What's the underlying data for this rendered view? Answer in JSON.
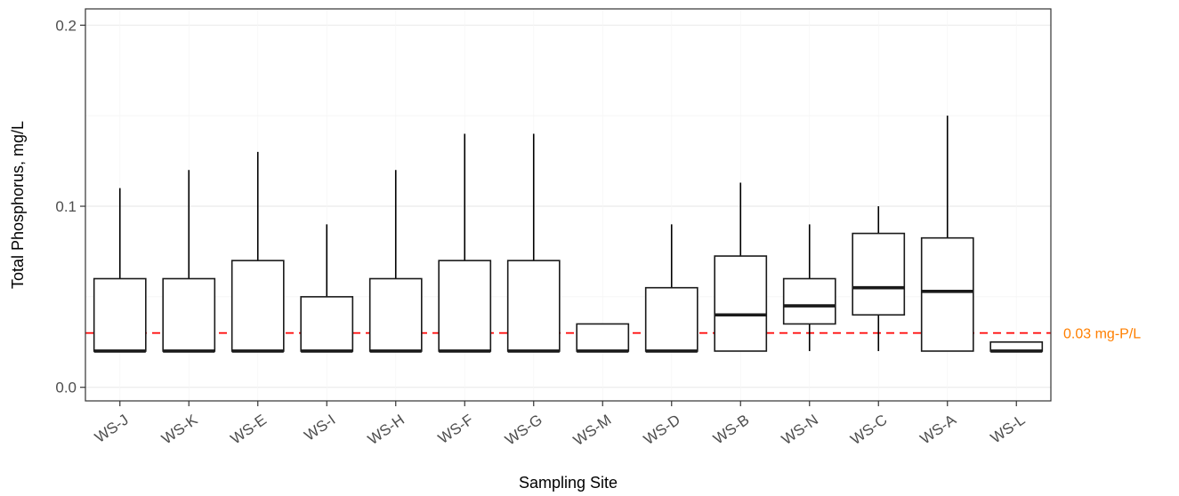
{
  "chart_data": {
    "type": "box",
    "xlabel": "Sampling Site",
    "ylabel": "Total Phosphorus, mg/L",
    "ylim": [
      -0.0075,
      0.209
    ],
    "yticks": [
      0.0,
      0.1,
      0.2
    ],
    "ytick_labels": [
      "0.0",
      "0.1",
      "0.2"
    ],
    "grid": true,
    "reference_line": {
      "value": 0.03,
      "label": "0.03 mg-P/L",
      "color": "#ff0000",
      "label_color": "#ff7f00",
      "style": "dashed"
    },
    "categories": [
      "WS-J",
      "WS-K",
      "WS-E",
      "WS-I",
      "WS-H",
      "WS-F",
      "WS-G",
      "WS-M",
      "WS-D",
      "WS-B",
      "WS-N",
      "WS-C",
      "WS-A",
      "WS-L"
    ],
    "boxes": [
      {
        "category": "WS-J",
        "min": 0.02,
        "q1": 0.02,
        "median": 0.02,
        "q3": 0.06,
        "max": 0.11
      },
      {
        "category": "WS-K",
        "min": 0.02,
        "q1": 0.02,
        "median": 0.02,
        "q3": 0.06,
        "max": 0.12
      },
      {
        "category": "WS-E",
        "min": 0.02,
        "q1": 0.02,
        "median": 0.02,
        "q3": 0.07,
        "max": 0.13
      },
      {
        "category": "WS-I",
        "min": 0.02,
        "q1": 0.02,
        "median": 0.02,
        "q3": 0.05,
        "max": 0.09
      },
      {
        "category": "WS-H",
        "min": 0.02,
        "q1": 0.02,
        "median": 0.02,
        "q3": 0.06,
        "max": 0.12
      },
      {
        "category": "WS-F",
        "min": 0.02,
        "q1": 0.02,
        "median": 0.02,
        "q3": 0.07,
        "max": 0.14
      },
      {
        "category": "WS-G",
        "min": 0.02,
        "q1": 0.02,
        "median": 0.02,
        "q3": 0.07,
        "max": 0.14
      },
      {
        "category": "WS-M",
        "min": 0.02,
        "q1": 0.02,
        "median": 0.02,
        "q3": 0.035,
        "max": 0.035
      },
      {
        "category": "WS-D",
        "min": 0.02,
        "q1": 0.02,
        "median": 0.02,
        "q3": 0.055,
        "max": 0.09
      },
      {
        "category": "WS-B",
        "min": 0.02,
        "q1": 0.02,
        "median": 0.04,
        "q3": 0.0725,
        "max": 0.113
      },
      {
        "category": "WS-N",
        "min": 0.02,
        "q1": 0.035,
        "median": 0.045,
        "q3": 0.06,
        "max": 0.09
      },
      {
        "category": "WS-C",
        "min": 0.02,
        "q1": 0.04,
        "median": 0.055,
        "q3": 0.085,
        "max": 0.1
      },
      {
        "category": "WS-A",
        "min": 0.02,
        "q1": 0.02,
        "median": 0.053,
        "q3": 0.0825,
        "max": 0.15
      },
      {
        "category": "WS-L",
        "min": 0.02,
        "q1": 0.02,
        "median": 0.02,
        "q3": 0.025,
        "max": 0.025
      }
    ]
  }
}
